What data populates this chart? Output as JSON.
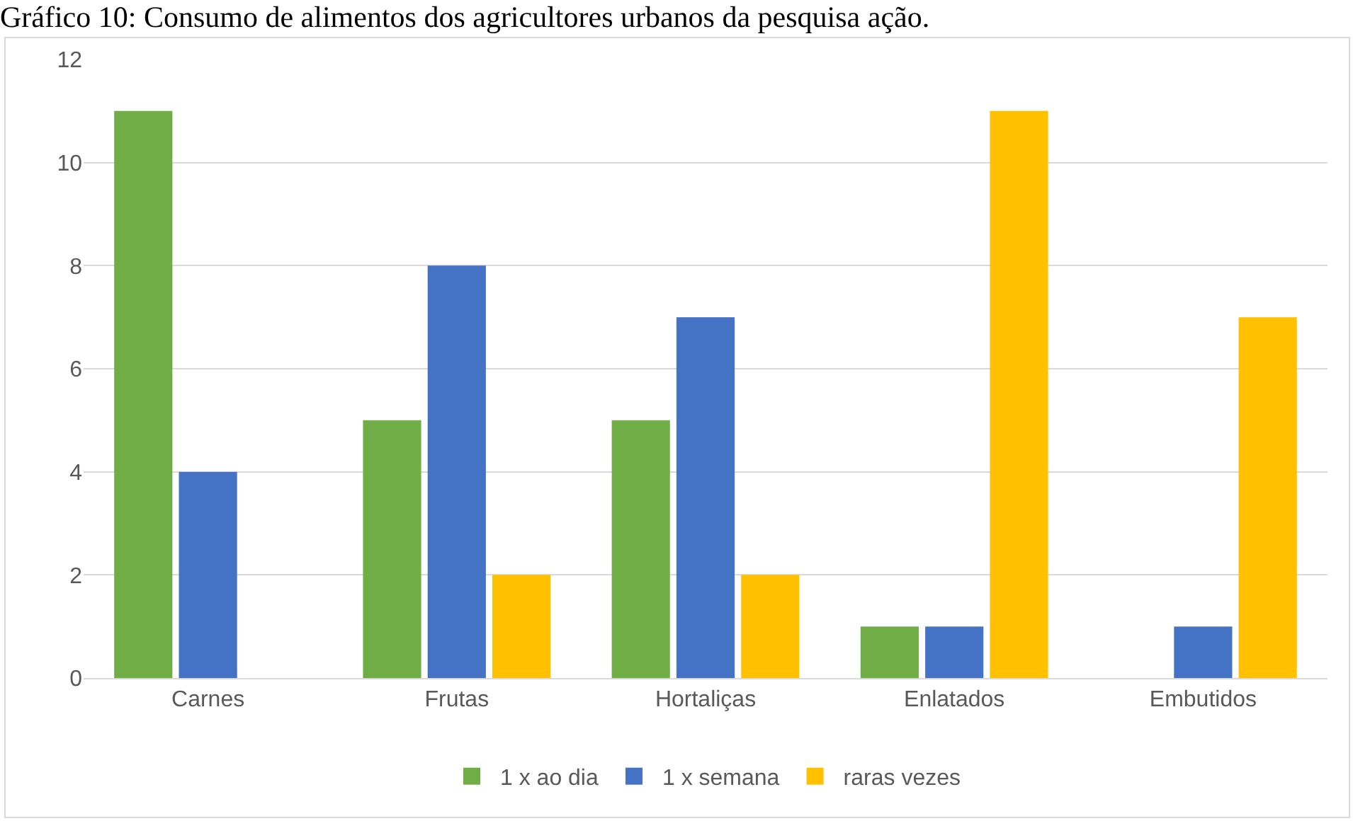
{
  "chart_data": {
    "type": "bar",
    "title": "Gráfico 10: Consumo de alimentos dos agricultores urbanos da pesquisa ação.",
    "categories": [
      "Carnes",
      "Frutas",
      "Hortaliças",
      "Enlatados",
      "Embutidos"
    ],
    "series": [
      {
        "name": "1 x ao dia",
        "color": "#70ad47",
        "values": [
          11,
          5,
          5,
          1,
          0
        ]
      },
      {
        "name": "1 x semana",
        "color": "#4472c4",
        "values": [
          4,
          8,
          7,
          1,
          1
        ]
      },
      {
        "name": "raras vezes",
        "color": "#ffc000",
        "values": [
          0,
          2,
          2,
          11,
          7
        ]
      }
    ],
    "ylim": [
      0,
      12
    ],
    "yticks": [
      0,
      2,
      4,
      6,
      8,
      10,
      12
    ],
    "grid": "y",
    "legend": "bottom"
  }
}
